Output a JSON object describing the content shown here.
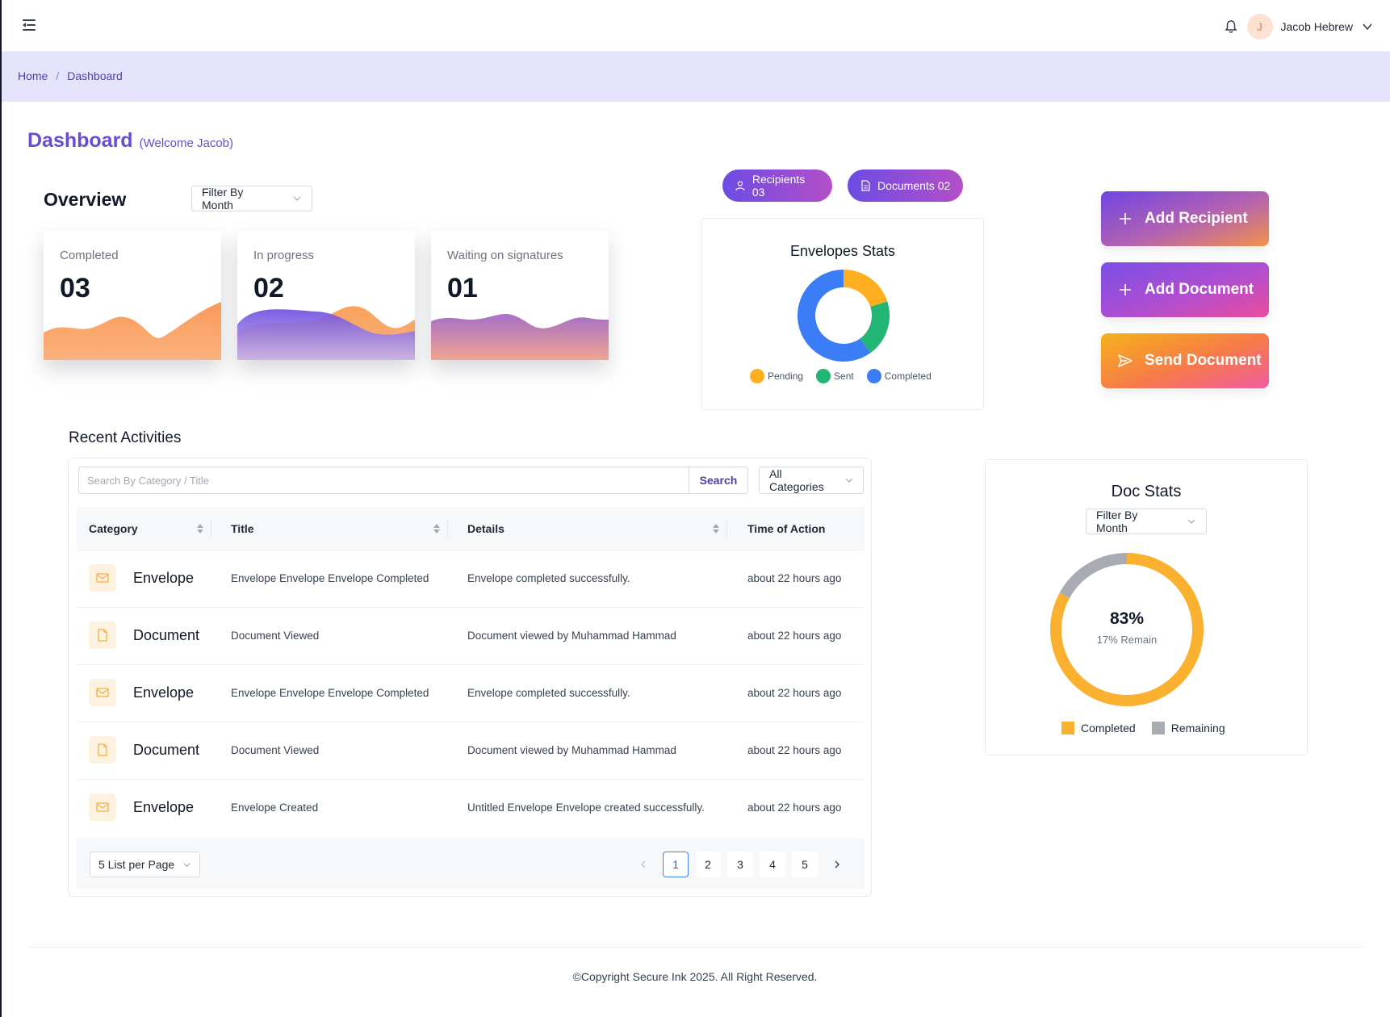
{
  "header": {
    "user_initial": "J",
    "user_name": "Jacob Hebrew"
  },
  "breadcrumb": {
    "home": "Home",
    "separator": "/",
    "current": "Dashboard"
  },
  "page": {
    "title": "Dashboard",
    "welcome": "(Welcome Jacob)"
  },
  "overview": {
    "title": "Overview",
    "filter_label": "Filter By Month",
    "cards": [
      {
        "label": "Completed",
        "value": "03"
      },
      {
        "label": "In progress",
        "value": "02"
      },
      {
        "label": "Waiting on signatures",
        "value": "01"
      }
    ]
  },
  "pills": {
    "recipients": "Recipients 03",
    "documents": "Documents 02"
  },
  "envelope_stats": {
    "title": "Envelopes Stats",
    "legend": [
      "Pending",
      "Sent",
      "Completed"
    ]
  },
  "actions": {
    "add_recipient": "Add Recipient",
    "add_document": "Add Document",
    "send_document": "Send Document"
  },
  "recent": {
    "title": "Recent Activities",
    "search_placeholder": "Search By Category / Title",
    "search_button": "Search",
    "category_filter": "All Categories",
    "columns": [
      "Category",
      "Title",
      "Details",
      "Time of Action"
    ],
    "rows": [
      {
        "category": "Envelope",
        "title": "Envelope Envelope Envelope Completed",
        "details": "Envelope completed successfully.",
        "time": "about 22 hours ago"
      },
      {
        "category": "Document",
        "title": "Document Viewed",
        "details": "Document viewed by Muhammad Hammad",
        "time": "about 22 hours ago"
      },
      {
        "category": "Envelope",
        "title": "Envelope Envelope Envelope Completed",
        "details": "Envelope completed successfully.",
        "time": "about 22 hours ago"
      },
      {
        "category": "Document",
        "title": "Document Viewed",
        "details": "Document viewed by Muhammad Hammad",
        "time": "about 22 hours ago"
      },
      {
        "category": "Envelope",
        "title": "Envelope Created",
        "details": "Untitled Envelope Envelope created successfully.",
        "time": "about 22 hours ago"
      }
    ],
    "per_page": "5 List per Page",
    "pages": [
      "1",
      "2",
      "3",
      "4",
      "5"
    ],
    "current_page": "1"
  },
  "doc_stats": {
    "title": "Doc Stats",
    "filter_label": "Filter By Month",
    "percent": "83%",
    "remain": "17% Remain",
    "legend": [
      "Completed",
      "Remaining"
    ]
  },
  "chart_data": [
    {
      "type": "pie",
      "categories": [
        "Pending",
        "Sent",
        "Completed"
      ],
      "values": [
        1,
        1,
        3
      ],
      "colors": [
        "#ffb020",
        "#22b573",
        "#3b7df6"
      ]
    },
    {
      "type": "pie",
      "categories": [
        "Completed",
        "Remaining"
      ],
      "values": [
        83,
        17
      ],
      "colors": [
        "#fbb130",
        "#a8abb2"
      ]
    }
  ],
  "colors": {
    "accent": "#6a4bd6",
    "breadcrumb_bg": "#e6e3fc",
    "icon_bg": "#fdf1df",
    "icon_color": "#f5b041"
  }
}
